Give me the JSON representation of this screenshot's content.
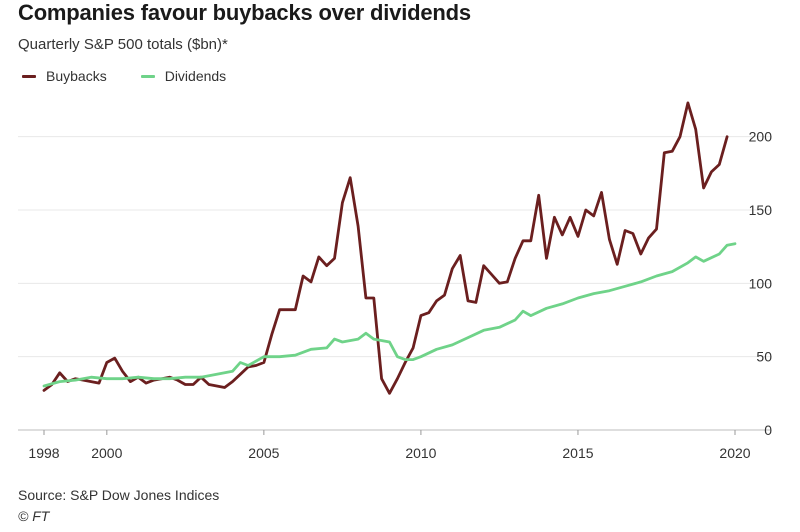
{
  "header": {
    "title": "Companies favour buybacks over dividends",
    "subtitle": "Quarterly S&P 500 totals ($bn)*"
  },
  "legend": {
    "items": [
      {
        "label": "Buybacks",
        "color": "#6b1f1f"
      },
      {
        "label": "Dividends",
        "color": "#6fd389"
      }
    ]
  },
  "footer": {
    "source": "Source: S&P Dow Jones Indices",
    "copyright": "© FT"
  },
  "chart_data": {
    "type": "line",
    "title": "Companies favour buybacks over dividends",
    "subtitle": "Quarterly S&P 500 totals ($bn)*",
    "xlabel": "",
    "ylabel": "",
    "xlim": [
      1998,
      2020
    ],
    "ylim": [
      0,
      225
    ],
    "x_ticks": [
      1998,
      2000,
      2005,
      2010,
      2015,
      2020
    ],
    "y_ticks": [
      0,
      50,
      100,
      150,
      200
    ],
    "y_axis_position": "right",
    "grid": "horizontal",
    "legend_position": "top-left",
    "series": [
      {
        "name": "Buybacks",
        "color": "#6b1f1f",
        "points": [
          [
            1998.0,
            27
          ],
          [
            1998.25,
            31
          ],
          [
            1998.5,
            39
          ],
          [
            1998.75,
            33
          ],
          [
            1999.0,
            35
          ],
          [
            1999.25,
            34
          ],
          [
            1999.5,
            33
          ],
          [
            1999.75,
            32
          ],
          [
            2000.0,
            46
          ],
          [
            2000.25,
            49
          ],
          [
            2000.5,
            40
          ],
          [
            2000.75,
            33
          ],
          [
            2001.0,
            36
          ],
          [
            2001.25,
            32
          ],
          [
            2001.5,
            34
          ],
          [
            2001.75,
            35
          ],
          [
            2002.0,
            36
          ],
          [
            2002.25,
            34
          ],
          [
            2002.5,
            31
          ],
          [
            2002.75,
            31
          ],
          [
            2003.0,
            36
          ],
          [
            2003.25,
            31
          ],
          [
            2003.5,
            30
          ],
          [
            2003.75,
            29
          ],
          [
            2004.0,
            33
          ],
          [
            2004.25,
            38
          ],
          [
            2004.5,
            43
          ],
          [
            2004.75,
            44
          ],
          [
            2005.0,
            46
          ],
          [
            2005.25,
            65
          ],
          [
            2005.5,
            82
          ],
          [
            2005.75,
            82
          ],
          [
            2006.0,
            82
          ],
          [
            2006.25,
            105
          ],
          [
            2006.5,
            101
          ],
          [
            2006.75,
            118
          ],
          [
            2007.0,
            112
          ],
          [
            2007.25,
            117
          ],
          [
            2007.5,
            155
          ],
          [
            2007.75,
            172
          ],
          [
            2008.0,
            139
          ],
          [
            2008.25,
            90
          ],
          [
            2008.5,
            90
          ],
          [
            2008.75,
            35
          ],
          [
            2009.0,
            25
          ],
          [
            2009.25,
            35
          ],
          [
            2009.5,
            46
          ],
          [
            2009.75,
            56
          ],
          [
            2010.0,
            78
          ],
          [
            2010.25,
            80
          ],
          [
            2010.5,
            88
          ],
          [
            2010.75,
            92
          ],
          [
            2011.0,
            110
          ],
          [
            2011.25,
            119
          ],
          [
            2011.5,
            88
          ],
          [
            2011.75,
            87
          ],
          [
            2012.0,
            112
          ],
          [
            2012.25,
            106
          ],
          [
            2012.5,
            100
          ],
          [
            2012.75,
            101
          ],
          [
            2013.0,
            117
          ],
          [
            2013.25,
            129
          ],
          [
            2013.5,
            129
          ],
          [
            2013.75,
            160
          ],
          [
            2014.0,
            117
          ],
          [
            2014.25,
            145
          ],
          [
            2014.5,
            133
          ],
          [
            2014.75,
            145
          ],
          [
            2015.0,
            132
          ],
          [
            2015.25,
            150
          ],
          [
            2015.5,
            146
          ],
          [
            2015.75,
            162
          ],
          [
            2016.0,
            130
          ],
          [
            2016.25,
            113
          ],
          [
            2016.5,
            136
          ],
          [
            2016.75,
            134
          ],
          [
            2017.0,
            120
          ],
          [
            2017.25,
            131
          ],
          [
            2017.5,
            137
          ],
          [
            2017.75,
            189
          ],
          [
            2018.0,
            190
          ],
          [
            2018.25,
            200
          ],
          [
            2018.5,
            223
          ],
          [
            2018.75,
            205
          ],
          [
            2019.0,
            165
          ],
          [
            2019.25,
            176
          ],
          [
            2019.5,
            181
          ],
          [
            2019.75,
            200
          ]
        ]
      },
      {
        "name": "Dividends",
        "color": "#6fd389",
        "points": [
          [
            1998.0,
            30
          ],
          [
            1998.5,
            33
          ],
          [
            1999.0,
            34
          ],
          [
            1999.5,
            36
          ],
          [
            2000.0,
            35
          ],
          [
            2000.5,
            35
          ],
          [
            2001.0,
            36
          ],
          [
            2001.5,
            35
          ],
          [
            2002.0,
            35
          ],
          [
            2002.5,
            36
          ],
          [
            2003.0,
            36
          ],
          [
            2003.5,
            38
          ],
          [
            2004.0,
            40
          ],
          [
            2004.25,
            46
          ],
          [
            2004.5,
            44
          ],
          [
            2005.0,
            50
          ],
          [
            2005.5,
            50
          ],
          [
            2006.0,
            51
          ],
          [
            2006.5,
            55
          ],
          [
            2007.0,
            56
          ],
          [
            2007.25,
            62
          ],
          [
            2007.5,
            60
          ],
          [
            2008.0,
            62
          ],
          [
            2008.25,
            66
          ],
          [
            2008.5,
            62
          ],
          [
            2009.0,
            60
          ],
          [
            2009.25,
            50
          ],
          [
            2009.5,
            48
          ],
          [
            2009.75,
            48
          ],
          [
            2010.0,
            50
          ],
          [
            2010.5,
            55
          ],
          [
            2011.0,
            58
          ],
          [
            2011.5,
            63
          ],
          [
            2012.0,
            68
          ],
          [
            2012.5,
            70
          ],
          [
            2013.0,
            75
          ],
          [
            2013.25,
            81
          ],
          [
            2013.5,
            78
          ],
          [
            2014.0,
            83
          ],
          [
            2014.5,
            86
          ],
          [
            2015.0,
            90
          ],
          [
            2015.5,
            93
          ],
          [
            2016.0,
            95
          ],
          [
            2016.5,
            98
          ],
          [
            2017.0,
            101
          ],
          [
            2017.5,
            105
          ],
          [
            2018.0,
            108
          ],
          [
            2018.5,
            114
          ],
          [
            2018.75,
            118
          ],
          [
            2019.0,
            115
          ],
          [
            2019.5,
            120
          ],
          [
            2019.75,
            126
          ],
          [
            2020.0,
            127
          ]
        ]
      }
    ]
  }
}
